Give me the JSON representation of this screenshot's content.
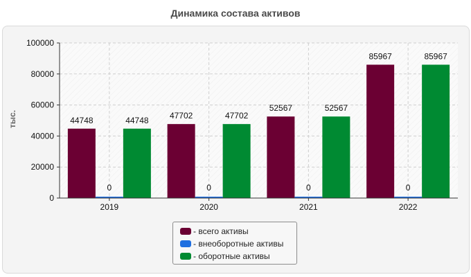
{
  "title": "Динамика состава активов",
  "chart_data": {
    "type": "bar",
    "title": "Динамика состава активов",
    "ylabel": "тыс.",
    "xlabel": "",
    "categories": [
      "2019",
      "2020",
      "2021",
      "2022"
    ],
    "ylim": [
      0,
      100000
    ],
    "yticks": [
      0,
      20000,
      40000,
      60000,
      80000,
      100000
    ],
    "grid": true,
    "legend_position": "bottom",
    "series": [
      {
        "name": "- всего активы",
        "color": "#6b0033",
        "values": [
          44748,
          47702,
          52567,
          85967
        ]
      },
      {
        "name": "- внеоборотные активы",
        "color": "#1f6fe0",
        "values": [
          0,
          0,
          0,
          0
        ]
      },
      {
        "name": "- оборотные активы",
        "color": "#008a32",
        "values": [
          44748,
          47702,
          52567,
          85967
        ]
      }
    ]
  }
}
